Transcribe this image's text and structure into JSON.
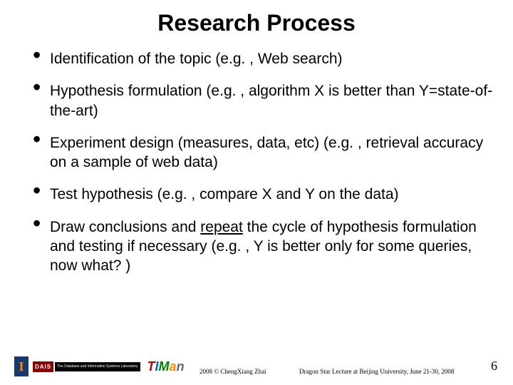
{
  "title": "Research Process",
  "bullets": [
    {
      "text": "Identification of the topic (e.g. , Web search)"
    },
    {
      "text": "Hypothesis formulation (e.g. , algorithm X is better than Y=state-of-the-art)"
    },
    {
      "text": "Experiment design (measures, data, etc) (e.g. , retrieval accuracy on a sample of web data)"
    },
    {
      "text": "Test hypothesis (e.g. , compare X and Y on the data)"
    },
    {
      "pre": "Draw conclusions and ",
      "underline": "repeat",
      "post": " the cycle of hypothesis formulation and testing if necessary (e.g. , Y is better only for some queries, now what? )"
    }
  ],
  "footer": {
    "logo_i": "I",
    "logo_dais_left": "DAIS",
    "logo_dais_right": "The Database and Information Systems Laboratory",
    "logo_timan": {
      "c1": "T",
      "c2": "I",
      "c3": "M",
      "c4": "a",
      "c5": "n"
    },
    "copyright": "2008 © ChengXiang Zhai",
    "event": "Dragon Star Lecture at Beijing University, June 21-30, 2008",
    "page": "6"
  },
  "colors": {
    "title_color": "#000000",
    "text_color": "#000000",
    "background": "#ffffff"
  },
  "fontsize": {
    "title": 32,
    "bullet": 21,
    "footer": 9,
    "page": 18
  }
}
